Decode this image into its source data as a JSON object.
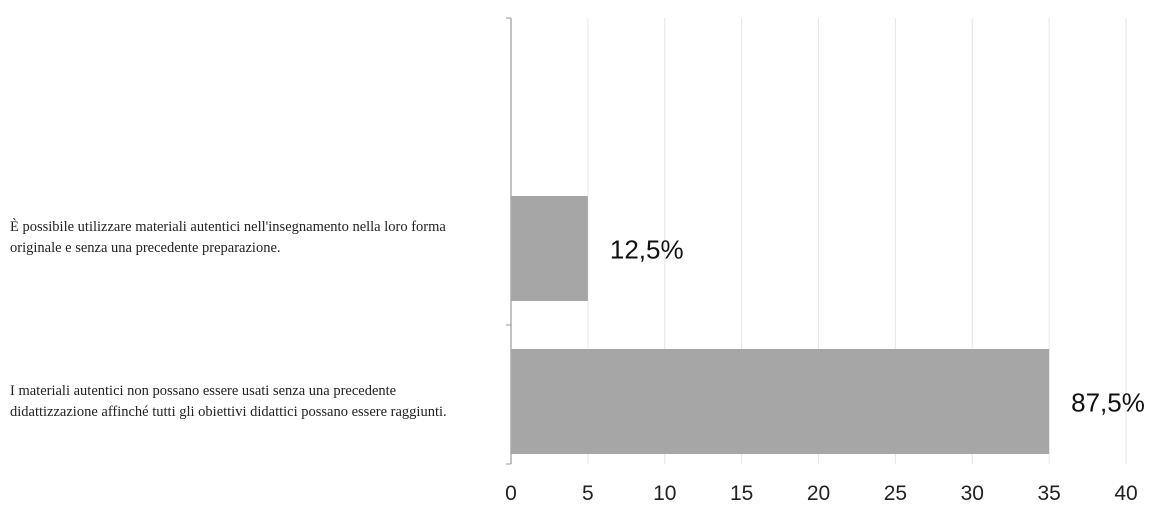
{
  "chart_data": {
    "type": "bar",
    "orientation": "horizontal",
    "categories": [
      "È possibile utilizzare materiali autentici nell'insegnamento nella loro forma originale e senza una precedente preparazione.",
      "I materiali autentici non possano essere usati senza una precedente didattizzazione affinché tutti gli obiettivi didattici possano essere raggiunti."
    ],
    "values": [
      5,
      35
    ],
    "data_labels": [
      "12,5%",
      "87,5%"
    ],
    "xlim": [
      0,
      40
    ],
    "x_ticks": [
      0,
      5,
      10,
      15,
      20,
      25,
      30,
      35,
      40
    ],
    "grid": "vertical",
    "legend": "none",
    "bar_color": "#a6a6a6",
    "grid_color": "#e6e6e6",
    "axis_color": "#999999"
  }
}
